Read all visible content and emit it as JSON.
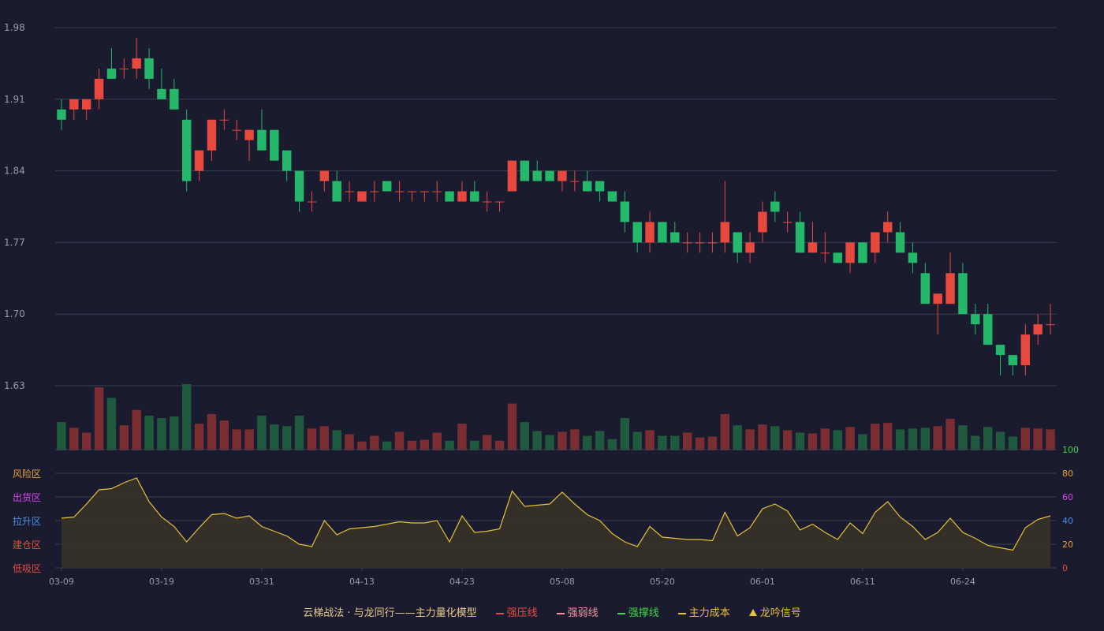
{
  "colors": {
    "background": "#1a1b2e",
    "grid": "#3a3c52",
    "up": "#e8493f",
    "down": "#25b76a",
    "vol_up": "#7a2e32",
    "vol_down": "#1f5a3e",
    "oscillator_line": "#e5c23b",
    "oscillator_fill": "#3a3426",
    "axis_text": "#9a9aa8",
    "zone_risk": "#e8a23a",
    "zone_distribute": "#d946ef",
    "zone_rally": "#4a90e2",
    "zone_build": "#e8493f",
    "zone_absorb": "#e8493f",
    "right_100": "#3ad84a",
    "right_80": "#e8a23a",
    "right_60": "#d946ef",
    "right_40": "#4a90e2",
    "right_20": "#e8a23a",
    "right_0": "#e8493f"
  },
  "chart_data": {
    "type": "candlestick",
    "price_axis": {
      "ticks": [
        "1.98",
        "1.91",
        "1.84",
        "1.77",
        "1.70",
        "1.63"
      ],
      "min": 1.63,
      "max": 1.98
    },
    "oscillator_axis": {
      "ticks": [
        "100",
        "80",
        "60",
        "40",
        "20",
        "0"
      ],
      "zones": [
        "风险区",
        "出货区",
        "拉升区",
        "建仓区",
        "低吸区"
      ]
    },
    "x_tick_labels": [
      {
        "index": 0,
        "label": "03-09"
      },
      {
        "index": 8,
        "label": "03-19"
      },
      {
        "index": 16,
        "label": "03-31"
      },
      {
        "index": 24,
        "label": "04-13"
      },
      {
        "index": 32,
        "label": "04-23"
      },
      {
        "index": 40,
        "label": "05-08"
      },
      {
        "index": 48,
        "label": "05-20"
      },
      {
        "index": 56,
        "label": "06-01"
      },
      {
        "index": 64,
        "label": "06-11"
      },
      {
        "index": 72,
        "label": "06-24"
      }
    ],
    "candles": [
      [
        1.9,
        1.89,
        1.91,
        1.88
      ],
      [
        1.9,
        1.91,
        1.91,
        1.89
      ],
      [
        1.9,
        1.91,
        1.91,
        1.89
      ],
      [
        1.91,
        1.93,
        1.94,
        1.9
      ],
      [
        1.94,
        1.93,
        1.96,
        1.93
      ],
      [
        1.94,
        1.94,
        1.95,
        1.93
      ],
      [
        1.94,
        1.95,
        1.97,
        1.93
      ],
      [
        1.95,
        1.93,
        1.96,
        1.92
      ],
      [
        1.92,
        1.91,
        1.94,
        1.91
      ],
      [
        1.92,
        1.9,
        1.93,
        1.9
      ],
      [
        1.89,
        1.83,
        1.9,
        1.82
      ],
      [
        1.84,
        1.86,
        1.86,
        1.83
      ],
      [
        1.86,
        1.89,
        1.89,
        1.85
      ],
      [
        1.89,
        1.89,
        1.9,
        1.88
      ],
      [
        1.88,
        1.88,
        1.89,
        1.87
      ],
      [
        1.87,
        1.88,
        1.88,
        1.85
      ],
      [
        1.88,
        1.86,
        1.9,
        1.86
      ],
      [
        1.88,
        1.85,
        1.88,
        1.85
      ],
      [
        1.86,
        1.84,
        1.86,
        1.83
      ],
      [
        1.84,
        1.81,
        1.84,
        1.8
      ],
      [
        1.81,
        1.81,
        1.82,
        1.8
      ],
      [
        1.83,
        1.84,
        1.84,
        1.82
      ],
      [
        1.83,
        1.81,
        1.84,
        1.81
      ],
      [
        1.82,
        1.82,
        1.83,
        1.81
      ],
      [
        1.81,
        1.82,
        1.82,
        1.81
      ],
      [
        1.82,
        1.82,
        1.83,
        1.81
      ],
      [
        1.83,
        1.82,
        1.83,
        1.82
      ],
      [
        1.82,
        1.82,
        1.83,
        1.81
      ],
      [
        1.82,
        1.82,
        1.82,
        1.81
      ],
      [
        1.82,
        1.82,
        1.82,
        1.81
      ],
      [
        1.82,
        1.82,
        1.83,
        1.81
      ],
      [
        1.82,
        1.81,
        1.82,
        1.81
      ],
      [
        1.81,
        1.82,
        1.83,
        1.81
      ],
      [
        1.82,
        1.81,
        1.83,
        1.81
      ],
      [
        1.81,
        1.81,
        1.82,
        1.8
      ],
      [
        1.81,
        1.81,
        1.81,
        1.8
      ],
      [
        1.82,
        1.85,
        1.85,
        1.82
      ],
      [
        1.85,
        1.83,
        1.85,
        1.83
      ],
      [
        1.84,
        1.83,
        1.85,
        1.83
      ],
      [
        1.84,
        1.83,
        1.84,
        1.83
      ],
      [
        1.83,
        1.84,
        1.84,
        1.82
      ],
      [
        1.83,
        1.83,
        1.84,
        1.82
      ],
      [
        1.83,
        1.82,
        1.84,
        1.82
      ],
      [
        1.83,
        1.82,
        1.83,
        1.81
      ],
      [
        1.82,
        1.81,
        1.82,
        1.81
      ],
      [
        1.81,
        1.79,
        1.82,
        1.78
      ],
      [
        1.79,
        1.77,
        1.79,
        1.76
      ],
      [
        1.77,
        1.79,
        1.8,
        1.76
      ],
      [
        1.79,
        1.77,
        1.79,
        1.77
      ],
      [
        1.78,
        1.77,
        1.79,
        1.77
      ],
      [
        1.77,
        1.77,
        1.78,
        1.76
      ],
      [
        1.77,
        1.77,
        1.78,
        1.76
      ],
      [
        1.77,
        1.77,
        1.78,
        1.76
      ],
      [
        1.77,
        1.79,
        1.83,
        1.76
      ],
      [
        1.78,
        1.76,
        1.78,
        1.75
      ],
      [
        1.76,
        1.77,
        1.78,
        1.75
      ],
      [
        1.78,
        1.8,
        1.81,
        1.77
      ],
      [
        1.81,
        1.8,
        1.82,
        1.79
      ],
      [
        1.79,
        1.79,
        1.8,
        1.78
      ],
      [
        1.79,
        1.76,
        1.8,
        1.76
      ],
      [
        1.76,
        1.77,
        1.79,
        1.76
      ],
      [
        1.76,
        1.76,
        1.78,
        1.75
      ],
      [
        1.76,
        1.75,
        1.76,
        1.75
      ],
      [
        1.75,
        1.77,
        1.77,
        1.74
      ],
      [
        1.77,
        1.75,
        1.77,
        1.75
      ],
      [
        1.76,
        1.78,
        1.78,
        1.75
      ],
      [
        1.78,
        1.79,
        1.8,
        1.77
      ],
      [
        1.78,
        1.76,
        1.79,
        1.76
      ],
      [
        1.76,
        1.75,
        1.77,
        1.74
      ],
      [
        1.74,
        1.71,
        1.75,
        1.71
      ],
      [
        1.71,
        1.72,
        1.72,
        1.68
      ],
      [
        1.71,
        1.74,
        1.76,
        1.71
      ],
      [
        1.74,
        1.7,
        1.75,
        1.7
      ],
      [
        1.7,
        1.69,
        1.71,
        1.68
      ],
      [
        1.7,
        1.67,
        1.71,
        1.67
      ],
      [
        1.67,
        1.66,
        1.67,
        1.64
      ],
      [
        1.66,
        1.65,
        1.66,
        1.64
      ],
      [
        1.65,
        1.68,
        1.69,
        1.64
      ],
      [
        1.68,
        1.69,
        1.7,
        1.67
      ],
      [
        1.69,
        1.69,
        1.71,
        1.68
      ]
    ],
    "volume": [
      35,
      28,
      22,
      78,
      65,
      31,
      50,
      43,
      40,
      42,
      82,
      33,
      45,
      37,
      26,
      26,
      43,
      32,
      30,
      43,
      27,
      30,
      25,
      20,
      11,
      18,
      11,
      23,
      12,
      13,
      22,
      12,
      33,
      12,
      19,
      12,
      58,
      35,
      24,
      19,
      23,
      26,
      18,
      24,
      14,
      40,
      23,
      25,
      18,
      18,
      22,
      16,
      17,
      45,
      31,
      26,
      32,
      30,
      25,
      22,
      21,
      27,
      25,
      29,
      20,
      33,
      34,
      26,
      27,
      28,
      30,
      39,
      31,
      18,
      29,
      23,
      17,
      28,
      27,
      26
    ],
    "oscillator": [
      42,
      43,
      54,
      66,
      67,
      72,
      76,
      56,
      43,
      35,
      22,
      34,
      45,
      46,
      42,
      44,
      35,
      31,
      27,
      20,
      18,
      40,
      28,
      33,
      34,
      35,
      37,
      39,
      38,
      38,
      40,
      22,
      44,
      30,
      31,
      33,
      65,
      52,
      53,
      54,
      64,
      54,
      45,
      40,
      29,
      22,
      18,
      35,
      26,
      25,
      24,
      24,
      23,
      47,
      27,
      34,
      50,
      54,
      48,
      32,
      37,
      30,
      24,
      38,
      29,
      47,
      56,
      43,
      35,
      24,
      30,
      42,
      30,
      25,
      19,
      17,
      15,
      34,
      41,
      44
    ]
  },
  "legend": [
    {
      "label": "云梯战法 · 与龙同行——主力量化模型",
      "color": "#e6c98a",
      "style": "none"
    },
    {
      "label": "强压线",
      "color": "#e8493f",
      "style": "solid"
    },
    {
      "label": "强弱线",
      "color": "#ff8fa3",
      "style": "dashed"
    },
    {
      "label": "强撑线",
      "color": "#3ad84a",
      "style": "solid"
    },
    {
      "label": "主力成本",
      "color": "#e5c23b",
      "style": "dashed"
    },
    {
      "label": "龙吟信号",
      "color": "#e5c23b",
      "style": "triangle"
    }
  ]
}
